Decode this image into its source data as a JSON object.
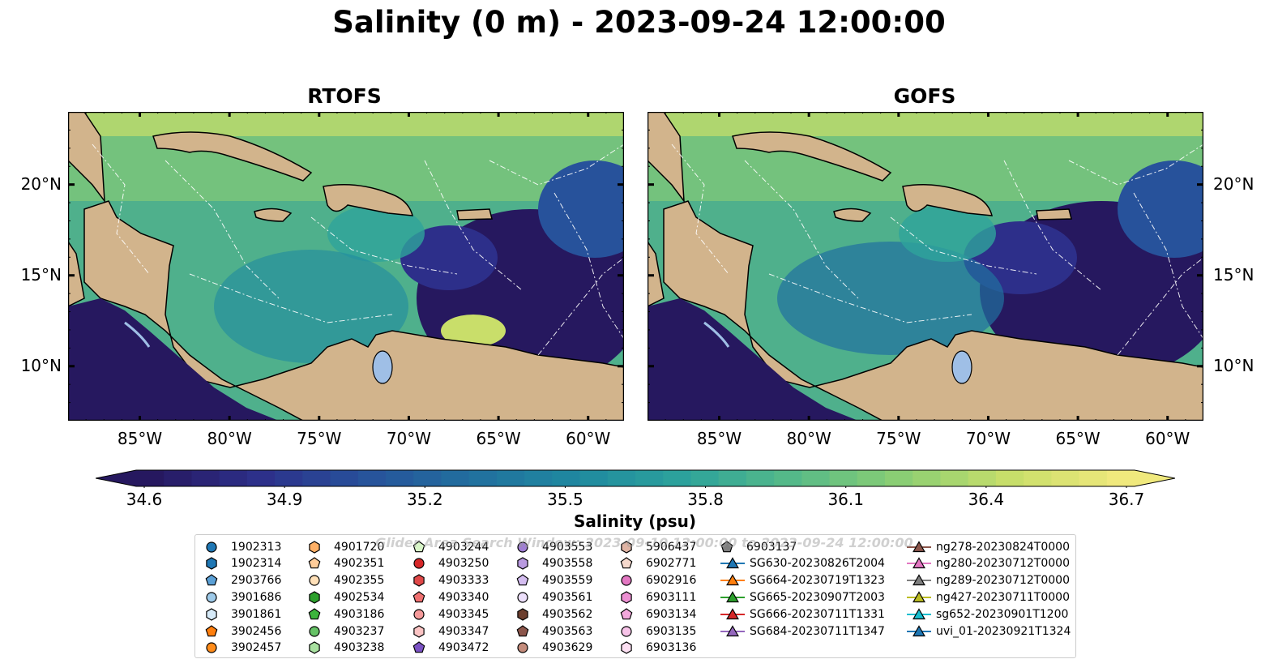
{
  "title": "Salinity (0 m) - 2023-09-24 12:00:00",
  "panels": [
    {
      "title": "RTOFS"
    },
    {
      "title": "GOFS"
    }
  ],
  "map_extent": {
    "lon": [
      -89,
      -58
    ],
    "lat": [
      7,
      24
    ]
  },
  "lon_ticks": [
    "85°W",
    "80°W",
    "75°W",
    "70°W",
    "65°W",
    "60°W"
  ],
  "lat_ticks": [
    "20°N",
    "15°N",
    "10°N"
  ],
  "colorbar": {
    "label": "Salinity (psu)",
    "ticks": [
      "34.6",
      "34.9",
      "35.2",
      "35.5",
      "35.8",
      "36.1",
      "36.4",
      "36.7"
    ],
    "colors": [
      "#26185f",
      "#2d2f8a",
      "#27529b",
      "#21709f",
      "#1f8aa0",
      "#2ea49b",
      "#58bb87",
      "#8dcf73",
      "#c9de6a",
      "#f0e97d"
    ]
  },
  "watermark": "Glider Area Search Window: 2023-09-10 12:00:00 to 2023-09-24 12:00:00",
  "colors": {
    "land": "#d2b48c",
    "lake": "#9fbfe6"
  },
  "legend": {
    "columns": [
      [
        {
          "label": "1902313",
          "marker": "circle",
          "color": "#1f77b4"
        },
        {
          "label": "1902314",
          "marker": "hexagon",
          "color": "#1f77b4"
        },
        {
          "label": "2903766",
          "marker": "pentagon",
          "color": "#5ba0d6"
        },
        {
          "label": "3901686",
          "marker": "circle",
          "color": "#9ecae9"
        },
        {
          "label": "3901861",
          "marker": "hexagon",
          "color": "#d6eaf8"
        },
        {
          "label": "3902456",
          "marker": "pentagon",
          "color": "#ff7f0e"
        },
        {
          "label": "3902457",
          "marker": "circle",
          "color": "#ff8c1a"
        }
      ],
      [
        {
          "label": "4901720",
          "marker": "hexagon",
          "color": "#ffb066"
        },
        {
          "label": "4902351",
          "marker": "pentagon",
          "color": "#ffcc99"
        },
        {
          "label": "4902355",
          "marker": "circle",
          "color": "#ffe0b8"
        },
        {
          "label": "4902534",
          "marker": "hexagon",
          "color": "#2ca02c"
        },
        {
          "label": "4903186",
          "marker": "pentagon",
          "color": "#3cb43c"
        },
        {
          "label": "4903237",
          "marker": "circle",
          "color": "#66c266"
        },
        {
          "label": "4903238",
          "marker": "hexagon",
          "color": "#a8e0a0"
        }
      ],
      [
        {
          "label": "4903244",
          "marker": "pentagon",
          "color": "#d8f5c8"
        },
        {
          "label": "4903250",
          "marker": "circle",
          "color": "#d62728"
        },
        {
          "label": "4903333",
          "marker": "hexagon",
          "color": "#e04848"
        },
        {
          "label": "4903340",
          "marker": "pentagon",
          "color": "#ef7070"
        },
        {
          "label": "4903345",
          "marker": "circle",
          "color": "#f59a9a"
        },
        {
          "label": "4903347",
          "marker": "hexagon",
          "color": "#fbc4c4"
        },
        {
          "label": "4903472",
          "marker": "pentagon",
          "color": "#7b52c4"
        }
      ],
      [
        {
          "label": "4903553",
          "marker": "circle",
          "color": "#a07ed4"
        },
        {
          "label": "4903558",
          "marker": "hexagon",
          "color": "#b99ae0"
        },
        {
          "label": "4903559",
          "marker": "pentagon",
          "color": "#d4bdf0"
        },
        {
          "label": "4903561",
          "marker": "circle",
          "color": "#ecdffa"
        },
        {
          "label": "4903562",
          "marker": "hexagon",
          "color": "#6b3e2e"
        },
        {
          "label": "4903563",
          "marker": "pentagon",
          "color": "#8c564b"
        },
        {
          "label": "4903629",
          "marker": "circle",
          "color": "#c48c7c"
        }
      ],
      [
        {
          "label": "5906437",
          "marker": "hexagon",
          "color": "#e0b4a4"
        },
        {
          "label": "6902771",
          "marker": "pentagon",
          "color": "#f5d8cc"
        },
        {
          "label": "6902916",
          "marker": "circle",
          "color": "#e377c2"
        },
        {
          "label": "6903111",
          "marker": "hexagon",
          "color": "#ec8fd2"
        },
        {
          "label": "6903134",
          "marker": "pentagon",
          "color": "#f2a8dc"
        },
        {
          "label": "6903135",
          "marker": "circle",
          "color": "#f7c3e8"
        },
        {
          "label": "6903136",
          "marker": "hexagon",
          "color": "#fcdff2"
        }
      ],
      [
        {
          "label": "6903137",
          "marker": "pentagon",
          "color": "#7f7f7f"
        },
        {
          "label": "SG630-20230826T2004",
          "marker": "triangle",
          "color": "#1f77b4"
        },
        {
          "label": "SG664-20230719T1323",
          "marker": "triangle",
          "color": "#ff7f0e"
        },
        {
          "label": "SG665-20230907T2003",
          "marker": "triangle",
          "color": "#2ca02c"
        },
        {
          "label": "SG666-20230711T1331",
          "marker": "triangle",
          "color": "#d62728"
        },
        {
          "label": "SG684-20230711T1347",
          "marker": "triangle",
          "color": "#9467bd"
        }
      ],
      [
        {
          "label": "ng278-20230824T0000",
          "marker": "triangle",
          "color": "#8c564b"
        },
        {
          "label": "ng280-20230712T0000",
          "marker": "triangle",
          "color": "#e377c2"
        },
        {
          "label": "ng289-20230712T0000",
          "marker": "triangle",
          "color": "#7f7f7f"
        },
        {
          "label": "ng427-20230711T0000",
          "marker": "triangle",
          "color": "#bcbd22"
        },
        {
          "label": "sg652-20230901T1200",
          "marker": "triangle",
          "color": "#17becf"
        },
        {
          "label": "uvi_01-20230921T1324",
          "marker": "triangle",
          "color": "#1f77b4"
        }
      ]
    ]
  }
}
